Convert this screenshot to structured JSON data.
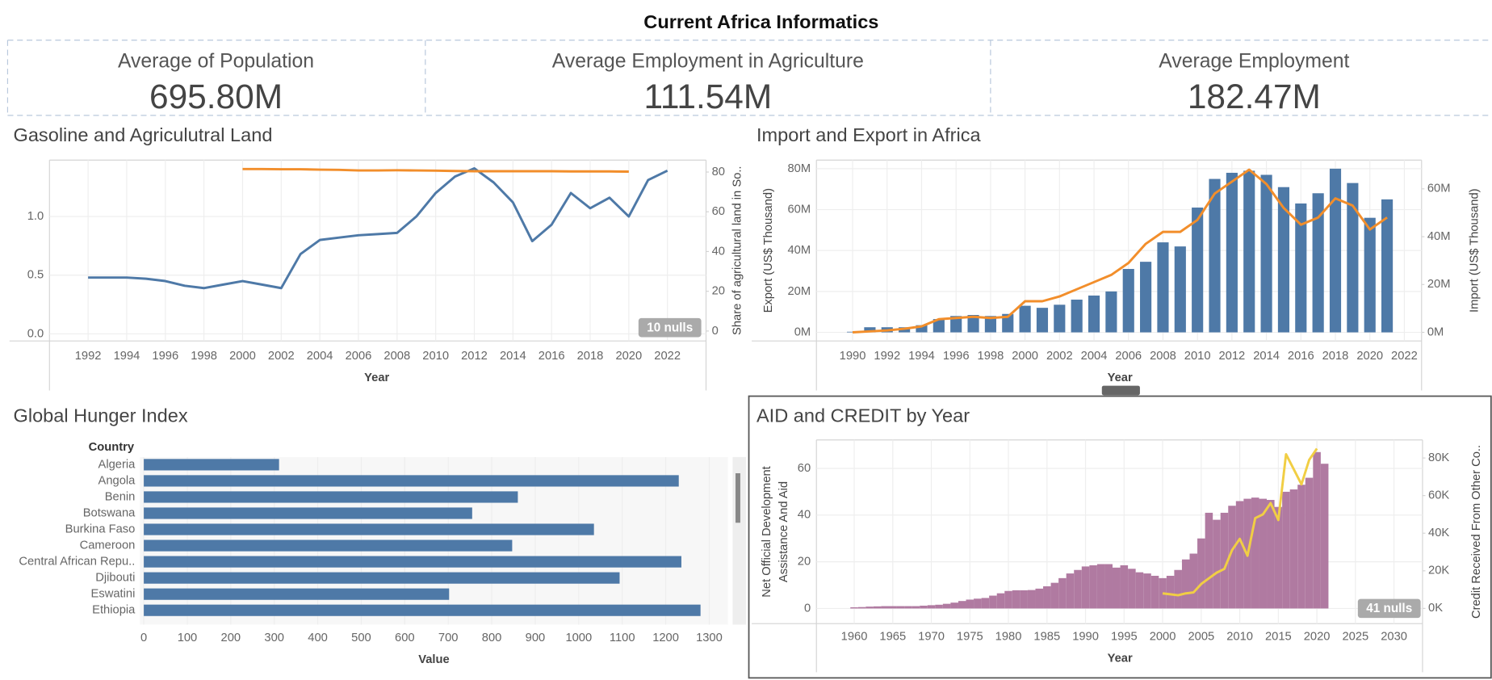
{
  "title": "Current Africa Informatics",
  "kpis": [
    {
      "label": "Average of Population",
      "value": "695.80M"
    },
    {
      "label": "Average Employment in Agriculture",
      "value": "111.54M"
    },
    {
      "label": "Average Employment",
      "value": "182.47M"
    }
  ],
  "chart_data": [
    {
      "type": "line",
      "title": "Gasoline and Agriculutral Land",
      "x_label": "Year",
      "y2_label": "Share of agricultural land in So..",
      "nulls_label": "10 nulls",
      "grid": true,
      "x": [
        1992,
        1993,
        1994,
        1995,
        1996,
        1997,
        1998,
        1999,
        2000,
        2001,
        2002,
        2003,
        2004,
        2005,
        2006,
        2007,
        2008,
        2009,
        2010,
        2011,
        2012,
        2013,
        2014,
        2015,
        2016,
        2017,
        2018,
        2019,
        2020,
        2021,
        2022
      ],
      "xlim": [
        1990,
        2024
      ],
      "xticks": [
        1992,
        1994,
        1996,
        1998,
        2000,
        2002,
        2004,
        2006,
        2008,
        2010,
        2012,
        2014,
        2016,
        2018,
        2020,
        2022
      ],
      "ylim": [
        -0.06,
        1.48
      ],
      "yticks": [
        {
          "value": 0,
          "label": "0.0"
        },
        0.5,
        {
          "value": 1,
          "label": "1.0"
        }
      ],
      "y2lim": [
        -5,
        86
      ],
      "y2ticks": [
        0,
        20,
        40,
        60,
        80
      ],
      "series": [
        {
          "type": "line",
          "color": "#4e79a7",
          "values": [
            0.48,
            0.48,
            0.48,
            0.47,
            0.45,
            0.41,
            0.39,
            0.42,
            0.45,
            0.42,
            0.39,
            0.68,
            0.8,
            0.82,
            0.84,
            0.85,
            0.86,
            1.0,
            1.2,
            1.34,
            1.41,
            1.29,
            1.12,
            0.79,
            0.93,
            1.2,
            1.07,
            1.16,
            1.0,
            1.31,
            1.39
          ]
        },
        {
          "type": "line",
          "axis": "y2",
          "color": "#f28e2b",
          "values": [
            null,
            null,
            null,
            null,
            null,
            null,
            null,
            null,
            81.5,
            81.5,
            81.4,
            81.4,
            81.2,
            81.1,
            80.8,
            80.8,
            80.9,
            80.8,
            80.7,
            80.5,
            80.4,
            80.4,
            80.4,
            80.4,
            80.4,
            80.3,
            80.3,
            80.3,
            80.2,
            null,
            null
          ]
        }
      ]
    },
    {
      "type": "combo",
      "title": "Import and Export in Africa",
      "x_label": "Year",
      "y_label": "Export (US$ Thousand)",
      "y2_label": "Import (US$ Thousand)",
      "grid": true,
      "x": [
        1990,
        1991,
        1992,
        1993,
        1994,
        1995,
        1996,
        1997,
        1998,
        1999,
        2000,
        2001,
        2002,
        2003,
        2004,
        2005,
        2006,
        2007,
        2008,
        2009,
        2010,
        2011,
        2012,
        2013,
        2014,
        2015,
        2016,
        2017,
        2018,
        2019,
        2020,
        2021
      ],
      "xlim": [
        1987.9,
        2023
      ],
      "xticks": [
        1990,
        1992,
        1994,
        1996,
        1998,
        2000,
        2002,
        2004,
        2006,
        2008,
        2010,
        2012,
        2014,
        2016,
        2018,
        2020,
        2022
      ],
      "ylim": [
        -4.2,
        84.2
      ],
      "yticks": [
        {
          "value": 0,
          "label": "0M"
        },
        {
          "value": 20,
          "label": "20M"
        },
        {
          "value": 40,
          "label": "40M"
        },
        {
          "value": 60,
          "label": "60M"
        },
        {
          "value": 80,
          "label": "80M"
        }
      ],
      "y2lim": [
        -3.6,
        72
      ],
      "y2ticks": [
        {
          "value": 0,
          "label": "0M"
        },
        {
          "value": 20,
          "label": "20M"
        },
        {
          "value": 40,
          "label": "40M"
        },
        {
          "value": 60,
          "label": "60M"
        }
      ],
      "series": [
        {
          "type": "bar",
          "color": "#4e79a7",
          "values": [
            0.3,
            2.5,
            2.5,
            2.5,
            3.5,
            6.5,
            8,
            8.5,
            8,
            9,
            13,
            12,
            13.5,
            16,
            18,
            20,
            31,
            34.5,
            44,
            42,
            61,
            75,
            78,
            79,
            77,
            71,
            63,
            68,
            80,
            73,
            56,
            65
          ]
        },
        {
          "type": "line",
          "axis": "y2",
          "color": "#f28e2b",
          "values": [
            0,
            0.4,
            0.8,
            1.5,
            2.5,
            5.5,
            6,
            6.5,
            6,
            6.5,
            13,
            13,
            15,
            18,
            21,
            24,
            29,
            37,
            42,
            42,
            47,
            58,
            63,
            68,
            62,
            52,
            45,
            48,
            56,
            53,
            43,
            48
          ]
        }
      ]
    },
    {
      "type": "bar",
      "orientation": "horizontal",
      "title": "Global Hunger Index",
      "y_label": "Country",
      "x_label": "Value",
      "grid": true,
      "color": "#4e79a7",
      "categories": [
        "Algeria",
        "Angola",
        "Benin",
        "Botswana",
        "Burkina Faso",
        "Cameroon",
        "Central African Repu..",
        "Djibouti",
        "Eswatini",
        "Ethiopia"
      ],
      "values": [
        311,
        1230,
        860,
        755,
        1035,
        847,
        1236,
        1094,
        702,
        1280
      ],
      "xlim": [
        -9,
        1343
      ],
      "xticks": [
        0,
        100,
        200,
        300,
        400,
        500,
        600,
        700,
        800,
        900,
        1000,
        1100,
        1200,
        1300
      ]
    },
    {
      "type": "combo",
      "title": "AID and CREDIT by Year",
      "x_label": "Year",
      "y_label": [
        "Net Official Development",
        "Assistance And Aid"
      ],
      "y2_label": "Credit Received From Other Co..",
      "nulls_label": "41 nulls",
      "grid": true,
      "x": [
        1960,
        1961,
        1962,
        1963,
        1964,
        1965,
        1966,
        1967,
        1968,
        1969,
        1970,
        1971,
        1972,
        1973,
        1974,
        1975,
        1976,
        1977,
        1978,
        1979,
        1980,
        1981,
        1982,
        1983,
        1984,
        1985,
        1986,
        1987,
        1988,
        1989,
        1990,
        1991,
        1992,
        1993,
        1994,
        1995,
        1996,
        1997,
        1998,
        1999,
        2000,
        2001,
        2002,
        2003,
        2004,
        2005,
        2006,
        2007,
        2008,
        2009,
        2010,
        2011,
        2012,
        2013,
        2014,
        2015,
        2016,
        2017,
        2018,
        2019,
        2020,
        2021
      ],
      "xlim": [
        1955.1,
        2033.7
      ],
      "xticks": [
        1960,
        1965,
        1970,
        1975,
        1980,
        1985,
        1990,
        1995,
        2000,
        2005,
        2010,
        2015,
        2020,
        2025,
        2030
      ],
      "ylim": [
        -6.5,
        72.2
      ],
      "yticks": [
        0,
        20,
        40,
        60
      ],
      "y2lim": [
        -8.1,
        89.6
      ],
      "y2ticks": [
        {
          "value": 0,
          "label": "0K"
        },
        {
          "value": 20,
          "label": "20K"
        },
        {
          "value": 40,
          "label": "40K"
        },
        {
          "value": 60,
          "label": "60K"
        },
        {
          "value": 80,
          "label": "80K"
        }
      ],
      "series": [
        {
          "type": "bar",
          "color": "#b07aa1",
          "values": [
            0.5,
            0.6,
            0.8,
            0.9,
            1.0,
            1.0,
            1.0,
            1.0,
            1.0,
            1.2,
            1.4,
            1.6,
            2.0,
            2.5,
            3.2,
            3.8,
            4.2,
            4.5,
            5.5,
            6.5,
            7.5,
            7.8,
            7.8,
            7.9,
            8.5,
            9.5,
            11,
            13,
            15,
            16.5,
            18,
            18.5,
            19,
            19,
            17.5,
            18.5,
            17,
            15.5,
            15,
            14,
            13,
            14,
            16.5,
            21,
            23.5,
            30,
            41,
            38,
            41,
            44,
            46,
            47,
            47.5,
            47,
            46.5,
            43.5,
            50,
            51,
            53,
            56,
            67,
            62
          ]
        },
        {
          "type": "line",
          "axis": "y2",
          "color": "#f1ce44",
          "values": [
            null,
            null,
            null,
            null,
            null,
            null,
            null,
            null,
            null,
            null,
            null,
            null,
            null,
            null,
            null,
            null,
            null,
            null,
            null,
            null,
            null,
            null,
            null,
            null,
            null,
            null,
            null,
            null,
            null,
            null,
            null,
            null,
            null,
            null,
            null,
            null,
            null,
            null,
            null,
            null,
            8,
            7.5,
            7,
            8,
            8.5,
            13,
            16,
            19,
            21,
            31,
            37,
            28,
            48,
            50,
            56,
            47,
            82,
            74,
            66,
            79,
            85,
            null
          ]
        }
      ]
    }
  ]
}
